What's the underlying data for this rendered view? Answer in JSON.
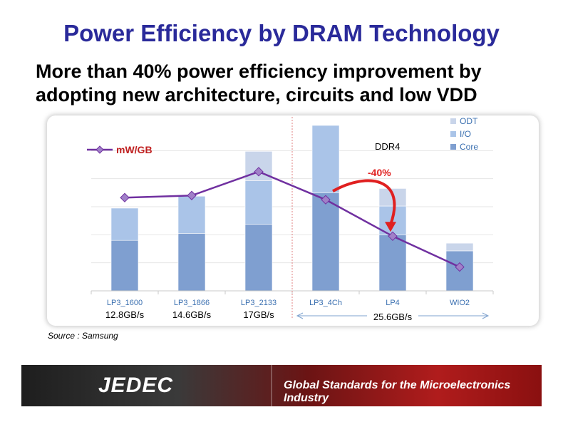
{
  "slide": {
    "title": "Power Efficiency by DRAM Technology",
    "subtitle_line1": "More than 40% power efficiency improvement by",
    "subtitle_line2": "adopting new architecture, circuits and low VDD",
    "source": "Source : Samsung"
  },
  "footer": {
    "logo_text": "JEDEC",
    "tagline": "Global Standards for the Microelectronics Industry"
  },
  "chart_data": {
    "type": "bar",
    "categories": [
      "LP3_1600",
      "LP3_1866",
      "LP3_2133",
      "LP3_4Ch",
      "LP4",
      "WIO2"
    ],
    "bandwidth_labels": [
      "12.8GB/s",
      "14.6GB/s",
      "17GB/s",
      "25.6GB/s"
    ],
    "series": [
      {
        "name": "Core",
        "values": [
          72,
          82,
          95,
          140,
          80,
          57
        ]
      },
      {
        "name": "I/O",
        "values": [
          46,
          53,
          62,
          96,
          41,
          0
        ]
      },
      {
        "name": "ODT",
        "values": [
          0,
          0,
          42,
          0,
          25,
          11
        ]
      }
    ],
    "line_series": {
      "name": "mW/GB",
      "values": [
        133,
        136,
        170,
        130,
        78,
        34
      ]
    },
    "ylim": [
      0,
      240
    ],
    "grid": true,
    "legend_position": "top-right",
    "annotations": {
      "section_label": "DDR4",
      "reduction_label": "-40%"
    },
    "colors": {
      "Core": "#7f9fd0",
      "I/O": "#aac4e8",
      "ODT": "#c9d5ea",
      "line": "#7030a0",
      "reduction": "#e02020",
      "axis_label": "#3a6fb0",
      "divider": "#e08080"
    }
  }
}
